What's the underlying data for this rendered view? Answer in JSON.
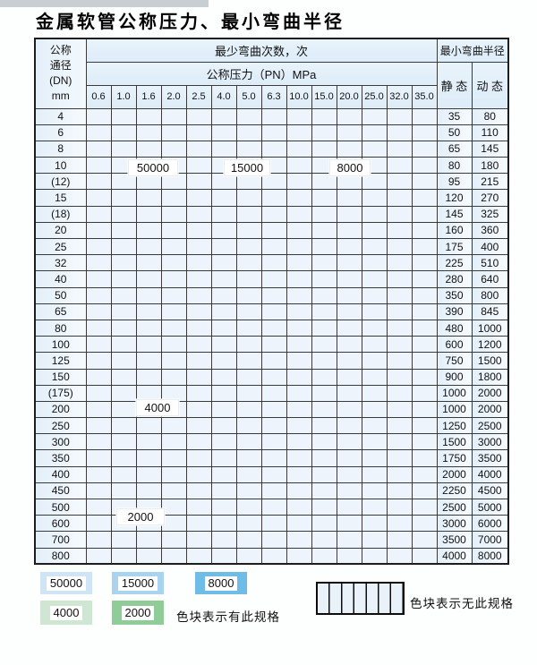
{
  "page": {
    "title": "金属软管公称压力、最小弯曲半径"
  },
  "table": {
    "dn_header_lines": [
      "公称",
      "通径",
      "(DN)",
      "mm"
    ],
    "cycles_header": "最少弯曲次数，次",
    "pressure_header": "公称压力（PN）MPa",
    "radius_header": "最小弯曲半径",
    "static_header": "静 态",
    "dynamic_header": "动 态",
    "pressure_columns": [
      "0.6",
      "1.0",
      "1.6",
      "2.0",
      "2.5",
      "4.0",
      "5.0",
      "6.3",
      "10.0",
      "15.0",
      "20.0",
      "25.0",
      "32.0",
      "35.0"
    ],
    "zone_codes": {
      "A": "50000 cycles zone (light blue)",
      "B": "15000 cycles zone (medium blue)",
      "C": "8000 cycles zone (dark blue)",
      "D": "4000 cycles zone (light green)",
      "E": "2000 cycles zone (dark green)",
      "N": "no specification (striped)"
    },
    "rows": [
      {
        "dn": "4",
        "cells": "AAAAABBBBCCCCC",
        "static": "35",
        "dynamic": "80"
      },
      {
        "dn": "6",
        "cells": "AAAAABBBBCCCNN",
        "static": "50",
        "dynamic": "110"
      },
      {
        "dn": "8",
        "cells": "AAAAABBBBCCCNN",
        "static": "65",
        "dynamic": "145"
      },
      {
        "dn": "10",
        "cells": "AAAAABBBBCCCNN",
        "static": "80",
        "dynamic": "180"
      },
      {
        "dn": "(12)",
        "cells": "AAAAABBBBCCCNN",
        "static": "95",
        "dynamic": "215"
      },
      {
        "dn": "15",
        "cells": "AAAAABBBCCCCNN",
        "static": "120",
        "dynamic": "270"
      },
      {
        "dn": "(18)",
        "cells": "AAAAABBBCCCNNN",
        "static": "145",
        "dynamic": "325"
      },
      {
        "dn": "20",
        "cells": "AAAAABBBCCCNNN",
        "static": "160",
        "dynamic": "360"
      },
      {
        "dn": "25",
        "cells": "AAAAABBBCCNNNN",
        "static": "175",
        "dynamic": "400"
      },
      {
        "dn": "32",
        "cells": "AAAAABBCCNNNNN",
        "static": "225",
        "dynamic": "510"
      },
      {
        "dn": "40",
        "cells": "AAAAABBCCNNNNN",
        "static": "280",
        "dynamic": "640"
      },
      {
        "dn": "50",
        "cells": "AAAABBCCNNNNNN",
        "static": "350",
        "dynamic": "800"
      },
      {
        "dn": "65",
        "cells": "AAAABBCCNNNNNN",
        "static": "390",
        "dynamic": "845"
      },
      {
        "dn": "80",
        "cells": "AAABBCCNNNNNNN",
        "static": "480",
        "dynamic": "1000"
      },
      {
        "dn": "100",
        "cells": "DDDDDDNNNNNNNN",
        "static": "600",
        "dynamic": "1200"
      },
      {
        "dn": "125",
        "cells": "DDDDDDNNNNNNNN",
        "static": "750",
        "dynamic": "1500"
      },
      {
        "dn": "150",
        "cells": "DDDDDDNNNNNNNN",
        "static": "900",
        "dynamic": "1800"
      },
      {
        "dn": "(175)",
        "cells": "DDDDDDNNNNNNNN",
        "static": "1000",
        "dynamic": "2000"
      },
      {
        "dn": "200",
        "cells": "DDDDDDNNNNNNNN",
        "static": "1000",
        "dynamic": "2000"
      },
      {
        "dn": "250",
        "cells": "DDDDDDNNNNNNNN",
        "static": "1250",
        "dynamic": "2500"
      },
      {
        "dn": "300",
        "cells": "DDDDDDNNNNNNNN",
        "static": "1500",
        "dynamic": "3000"
      },
      {
        "dn": "350",
        "cells": "EEEEENNNNNNNNN",
        "static": "1750",
        "dynamic": "3500"
      },
      {
        "dn": "400",
        "cells": "EEEEENNNNNNNNN",
        "static": "2000",
        "dynamic": "4000"
      },
      {
        "dn": "450",
        "cells": "EEEEENNNNNNNNN",
        "static": "2250",
        "dynamic": "4500"
      },
      {
        "dn": "500",
        "cells": "EEEEENNNNNNNNN",
        "static": "2500",
        "dynamic": "5000"
      },
      {
        "dn": "600",
        "cells": "EEEENNNNNNNNNN",
        "static": "3000",
        "dynamic": "6000"
      },
      {
        "dn": "700",
        "cells": "EEENNNNNNNNNNN",
        "static": "3500",
        "dynamic": "7000"
      },
      {
        "dn": "800",
        "cells": "EEENNNNNNNNNNN",
        "static": "4000",
        "dynamic": "8000"
      }
    ]
  },
  "overlay_labels": [
    {
      "text": "50000"
    },
    {
      "text": "15000"
    },
    {
      "text": "8000"
    },
    {
      "text": "4000"
    },
    {
      "text": "2000"
    }
  ],
  "legend": {
    "swatches": [
      {
        "label": "50000",
        "color": "#cfe4f5"
      },
      {
        "label": "15000",
        "color": "#a9d3ee"
      },
      {
        "label": "8000",
        "color": "#6fbde6"
      },
      {
        "label": "4000",
        "color": "#cfe7d2"
      },
      {
        "label": "2000",
        "color": "#8fcc97"
      }
    ],
    "has_spec_note": "色块表示有此规格",
    "no_spec_note": "色块表示无此规格"
  },
  "colors": {
    "zone_50000": "#cfe4f5",
    "zone_15000": "#a9d3ee",
    "zone_8000": "#79c0e7",
    "zone_4000": "#cfe7d2",
    "zone_2000": "#92cb9b",
    "striped_cell_bg": "#eef4fb",
    "header_bg": "#e3eff9",
    "grid_line": "#3a3a3a"
  }
}
